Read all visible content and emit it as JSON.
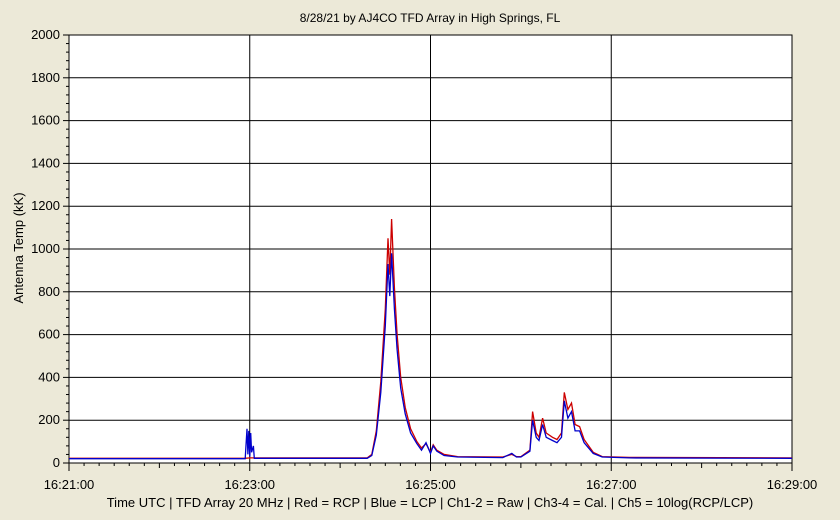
{
  "title": "8/28/21  by  AJ4CO TFD Array  in  High Springs, FL",
  "footer": "Time UTC  |  TFD Array 20 MHz  |  Red = RCP  |  Blue = LCP  |  Ch1-2 = Raw  |  Ch3-4 = Cal.  |  Ch5 = 10log(RCP/LCP)",
  "colors": {
    "background": "#ece9d8",
    "plot_bg": "#ffffff",
    "grid": "#000000",
    "rcp": "#cc0000",
    "lcp": "#0000cc"
  },
  "chart_data": {
    "type": "line",
    "title": "8/28/21  by  AJ4CO TFD Array  in  High Springs, FL",
    "xlabel": "Time UTC",
    "ylabel": "Antenna Temp (kK)",
    "x_unit": "minutes since 16:21:00 UTC",
    "xlim": [
      0,
      8
    ],
    "ylim": [
      0,
      2000
    ],
    "x_ticks": [
      "16:21:00",
      "16:23:00",
      "16:25:00",
      "16:27:00",
      "16:29:00"
    ],
    "x_tick_values": [
      0,
      2,
      4,
      6,
      8
    ],
    "y_ticks": [
      "0",
      "200",
      "400",
      "600",
      "800",
      "1000",
      "1200",
      "1400",
      "1600",
      "1800",
      "2000"
    ],
    "y_tick_values": [
      0,
      200,
      400,
      600,
      800,
      1000,
      1200,
      1400,
      1600,
      1800,
      2000
    ],
    "grid": true,
    "series": [
      {
        "name": "RCP",
        "color": "#cc0000",
        "points": [
          [
            0,
            22
          ],
          [
            1.95,
            22
          ],
          [
            2.0,
            24
          ],
          [
            3.3,
            24
          ],
          [
            3.35,
            40
          ],
          [
            3.4,
            150
          ],
          [
            3.45,
            380
          ],
          [
            3.5,
            720
          ],
          [
            3.53,
            1050
          ],
          [
            3.55,
            880
          ],
          [
            3.57,
            1140
          ],
          [
            3.6,
            820
          ],
          [
            3.63,
            600
          ],
          [
            3.67,
            400
          ],
          [
            3.72,
            260
          ],
          [
            3.78,
            160
          ],
          [
            3.85,
            100
          ],
          [
            3.9,
            70
          ],
          [
            3.95,
            90
          ],
          [
            4.0,
            50
          ],
          [
            4.03,
            85
          ],
          [
            4.07,
            60
          ],
          [
            4.15,
            40
          ],
          [
            4.3,
            30
          ],
          [
            4.8,
            28
          ],
          [
            4.9,
            40
          ],
          [
            4.95,
            30
          ],
          [
            5.0,
            30
          ],
          [
            5.1,
            60
          ],
          [
            5.13,
            240
          ],
          [
            5.17,
            140
          ],
          [
            5.2,
            120
          ],
          [
            5.24,
            210
          ],
          [
            5.28,
            140
          ],
          [
            5.35,
            120
          ],
          [
            5.4,
            110
          ],
          [
            5.45,
            140
          ],
          [
            5.48,
            330
          ],
          [
            5.52,
            250
          ],
          [
            5.56,
            280
          ],
          [
            5.6,
            180
          ],
          [
            5.65,
            170
          ],
          [
            5.7,
            110
          ],
          [
            5.8,
            50
          ],
          [
            5.9,
            30
          ],
          [
            6.2,
            26
          ],
          [
            8,
            24
          ]
        ]
      },
      {
        "name": "LCP",
        "color": "#0000cc",
        "points": [
          [
            0,
            20
          ],
          [
            1.95,
            20
          ],
          [
            1.97,
            160
          ],
          [
            1.98,
            40
          ],
          [
            1.99,
            150
          ],
          [
            2.0,
            30
          ],
          [
            2.01,
            140
          ],
          [
            2.02,
            50
          ],
          [
            2.04,
            80
          ],
          [
            2.05,
            22
          ],
          [
            3.3,
            22
          ],
          [
            3.35,
            35
          ],
          [
            3.4,
            130
          ],
          [
            3.45,
            330
          ],
          [
            3.5,
            640
          ],
          [
            3.53,
            930
          ],
          [
            3.55,
            780
          ],
          [
            3.57,
            980
          ],
          [
            3.6,
            720
          ],
          [
            3.63,
            530
          ],
          [
            3.67,
            350
          ],
          [
            3.72,
            230
          ],
          [
            3.78,
            140
          ],
          [
            3.85,
            90
          ],
          [
            3.9,
            60
          ],
          [
            3.95,
            95
          ],
          [
            4.0,
            45
          ],
          [
            4.03,
            80
          ],
          [
            4.07,
            55
          ],
          [
            4.15,
            35
          ],
          [
            4.3,
            28
          ],
          [
            4.8,
            25
          ],
          [
            4.9,
            45
          ],
          [
            4.95,
            28
          ],
          [
            5.0,
            28
          ],
          [
            5.1,
            55
          ],
          [
            5.13,
            200
          ],
          [
            5.17,
            120
          ],
          [
            5.2,
            105
          ],
          [
            5.24,
            180
          ],
          [
            5.28,
            120
          ],
          [
            5.35,
            105
          ],
          [
            5.4,
            95
          ],
          [
            5.45,
            120
          ],
          [
            5.48,
            290
          ],
          [
            5.52,
            210
          ],
          [
            5.56,
            240
          ],
          [
            5.6,
            150
          ],
          [
            5.65,
            150
          ],
          [
            5.7,
            95
          ],
          [
            5.8,
            45
          ],
          [
            5.9,
            28
          ],
          [
            6.2,
            24
          ],
          [
            8,
            22
          ]
        ]
      }
    ]
  }
}
